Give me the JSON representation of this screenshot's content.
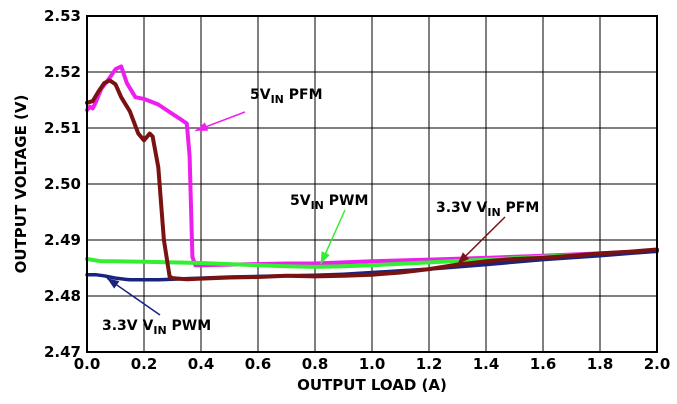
{
  "chart_data": {
    "type": "line",
    "title": "",
    "xlabel": "OUTPUT LOAD (A)",
    "ylabel": "OUTPUT VOLTAGE (V)",
    "xlim": [
      0.0,
      2.0
    ],
    "ylim": [
      2.47,
      2.53
    ],
    "x_ticks": [
      "0.0",
      "0.2",
      "0.4",
      "0.6",
      "0.8",
      "1.0",
      "1.2",
      "1.4",
      "1.6",
      "1.8",
      "2.0"
    ],
    "y_ticks": [
      "2.47",
      "2.48",
      "2.49",
      "2.50",
      "2.51",
      "2.52",
      "2.53"
    ],
    "grid": true,
    "legend": "none",
    "series": [
      {
        "key": "5v-pfm",
        "name": "5V_IN PFM",
        "color": "#ee1fee",
        "x": [
          0.0,
          0.01,
          0.02,
          0.03,
          0.05,
          0.08,
          0.1,
          0.12,
          0.14,
          0.17,
          0.2,
          0.25,
          0.3,
          0.33,
          0.35,
          0.36,
          0.37,
          0.38,
          0.4,
          0.5,
          0.6,
          0.7,
          0.8,
          0.9,
          1.0,
          1.2,
          1.4,
          1.6,
          1.8,
          2.0
        ],
        "y": [
          2.5132,
          2.5138,
          2.5135,
          2.5145,
          2.517,
          2.519,
          2.5205,
          2.521,
          2.518,
          2.5155,
          2.5152,
          2.5142,
          2.5125,
          2.5115,
          2.5108,
          2.505,
          2.487,
          2.4855,
          2.4855,
          2.4856,
          2.4857,
          2.4858,
          2.4858,
          2.486,
          2.4862,
          2.4865,
          2.4868,
          2.4872,
          2.4876,
          2.488
        ]
      },
      {
        "key": "5v-pwm",
        "name": "5V_IN PWM",
        "color": "#33ee33",
        "x": [
          0.0,
          0.05,
          0.1,
          0.2,
          0.3,
          0.4,
          0.5,
          0.6,
          0.7,
          0.8,
          0.9,
          1.0,
          1.2,
          1.4,
          1.6,
          1.8,
          2.0
        ],
        "y": [
          2.4866,
          2.4862,
          2.4862,
          2.4861,
          2.486,
          2.4859,
          2.4857,
          2.4855,
          2.4853,
          2.4852,
          2.4853,
          2.4855,
          2.486,
          2.4865,
          2.487,
          2.4875,
          2.488
        ]
      },
      {
        "key": "33v-pfm",
        "name": "3.3V V_IN PFM",
        "color": "#7a1212",
        "x": [
          0.0,
          0.02,
          0.04,
          0.06,
          0.08,
          0.1,
          0.12,
          0.15,
          0.18,
          0.2,
          0.22,
          0.23,
          0.25,
          0.27,
          0.29,
          0.3,
          0.32,
          0.35,
          0.4,
          0.5,
          0.6,
          0.7,
          0.8,
          0.9,
          1.0,
          1.1,
          1.2,
          1.3,
          1.4,
          1.5,
          1.6,
          1.7,
          1.8,
          1.9,
          2.0
        ],
        "y": [
          2.5145,
          2.5148,
          2.5165,
          2.518,
          2.5185,
          2.5178,
          2.5155,
          2.513,
          2.509,
          2.5078,
          2.509,
          2.5085,
          2.503,
          2.49,
          2.4835,
          2.4832,
          2.4831,
          2.483,
          2.4831,
          2.4833,
          2.4834,
          2.4836,
          2.4835,
          2.4836,
          2.4838,
          2.4842,
          2.4848,
          2.4856,
          2.4862,
          2.4866,
          2.4868,
          2.4872,
          2.4876,
          2.4879,
          2.4883
        ]
      },
      {
        "key": "33v-pwm",
        "name": "3.3V V_IN PWM",
        "color": "#1a237e",
        "x": [
          0.0,
          0.03,
          0.06,
          0.1,
          0.15,
          0.2,
          0.25,
          0.3,
          0.35,
          0.4,
          0.5,
          0.6,
          0.7,
          0.8,
          0.9,
          1.0,
          1.1,
          1.2,
          1.4,
          1.6,
          1.8,
          2.0
        ],
        "y": [
          2.4838,
          2.4838,
          2.4836,
          2.4832,
          2.4829,
          2.4829,
          2.4829,
          2.483,
          2.4831,
          2.4832,
          2.4834,
          2.4835,
          2.4836,
          2.4837,
          2.4839,
          2.4842,
          2.4845,
          2.4848,
          2.4856,
          2.4865,
          2.4872,
          2.488
        ]
      }
    ],
    "annotations": [
      {
        "key": "5v-pfm",
        "main": "5V",
        "sub": "IN",
        "rest": " PFM",
        "color": "#ee1fee",
        "target_x": 0.38,
        "target_y": 2.5095
      },
      {
        "key": "5v-pwm",
        "main": "5V",
        "sub": "IN",
        "rest": " PWM",
        "color": "#33ee33",
        "target_x": 0.82,
        "target_y": 2.4857
      },
      {
        "key": "33v-pfm",
        "main": "3.3V V",
        "sub": "IN",
        "rest": " PFM",
        "color": "#7a1212",
        "target_x": 1.3,
        "target_y": 2.4857
      },
      {
        "key": "33v-pwm",
        "main": "3.3V V",
        "sub": "IN",
        "rest": " PWM",
        "color": "#1a237e",
        "target_x": 0.07,
        "target_y": 2.4832
      }
    ]
  }
}
